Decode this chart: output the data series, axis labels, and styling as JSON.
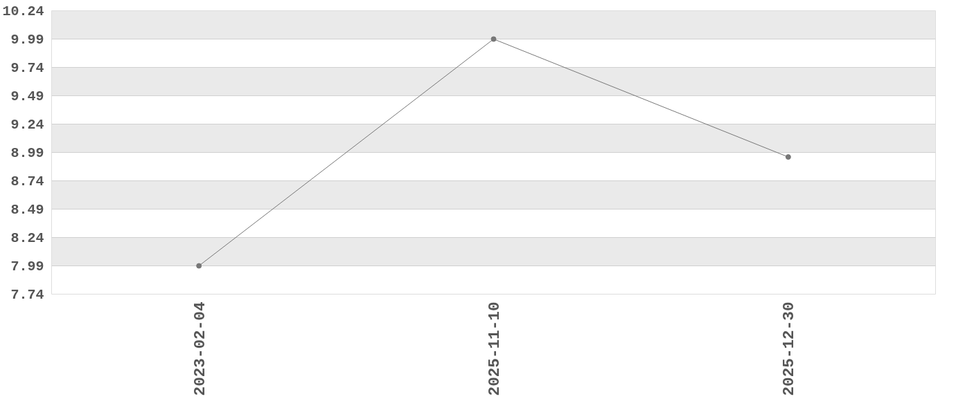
{
  "chart_data": {
    "type": "line",
    "categories": [
      "2023-02-04",
      "2025-11-10",
      "2025-12-30"
    ],
    "series": [
      {
        "color": "#777777",
        "values": [
          7.99,
          9.99,
          8.95
        ]
      }
    ],
    "ylim": [
      7.74,
      10.24
    ],
    "yticks": [
      7.74,
      7.99,
      8.24,
      8.49,
      8.74,
      8.99,
      9.24,
      9.49,
      9.74,
      9.99,
      10.24
    ],
    "grid": "y",
    "marker": "circle",
    "line_style": "solid"
  }
}
